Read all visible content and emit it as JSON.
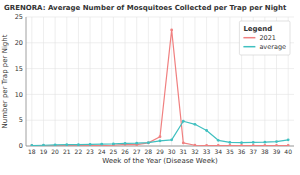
{
  "chart_data": {
    "type": "line",
    "title": "GRENORA: Average Number of Mosquitoes Collected per Trap per Night",
    "x_label": "Week of the Year (Disease Week)",
    "y_label": "Number per Trap per Night",
    "legend_title": "Legend",
    "x": [
      18,
      19,
      20,
      21,
      22,
      23,
      24,
      25,
      26,
      27,
      28,
      29,
      30,
      31,
      32,
      33,
      34,
      35,
      36,
      37,
      38,
      39,
      40
    ],
    "series": [
      {
        "name": "2021",
        "color": "#f08080",
        "values": [
          0.05,
          0.05,
          0.1,
          0.1,
          0.1,
          0.1,
          0.1,
          0.15,
          0.3,
          0.25,
          0.6,
          1.8,
          22.5,
          0.6,
          0.15,
          0.1,
          0.1,
          0.1,
          0.1,
          0.1,
          0.1,
          0.1,
          0.1
        ]
      },
      {
        "name": "average",
        "color": "#40c0c0",
        "values": [
          0.1,
          0.15,
          0.2,
          0.25,
          0.25,
          0.3,
          0.35,
          0.4,
          0.5,
          0.55,
          0.65,
          1.0,
          1.2,
          4.8,
          4.2,
          3.0,
          1.1,
          0.7,
          0.65,
          0.7,
          0.75,
          0.85,
          1.2
        ]
      }
    ],
    "xlim": [
      17.5,
      40.5
    ],
    "xticks": [
      18,
      19,
      20,
      21,
      22,
      23,
      24,
      25,
      26,
      27,
      28,
      29,
      30,
      31,
      32,
      33,
      34,
      35,
      36,
      37,
      38,
      39,
      40
    ],
    "ylim": [
      0,
      25
    ],
    "yticks": [
      0,
      5,
      10,
      15,
      20,
      25
    ],
    "grid": true,
    "legend": "upper right",
    "marker": "circle"
  }
}
